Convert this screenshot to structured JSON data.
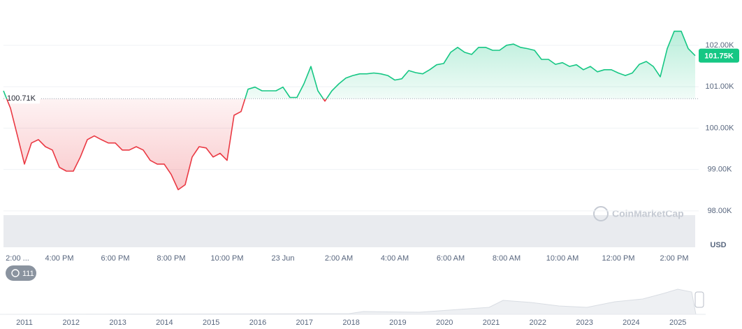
{
  "chart_data": {
    "type": "line",
    "x": [
      14,
      14.25,
      14.5,
      14.75,
      15,
      15.25,
      15.5,
      15.75,
      16,
      16.25,
      16.5,
      16.75,
      17,
      17.25,
      17.5,
      17.75,
      18,
      18.25,
      18.5,
      18.75,
      19,
      19.25,
      19.5,
      19.75,
      20,
      20.25,
      20.5,
      20.75,
      21,
      21.25,
      21.5,
      21.75,
      22,
      22.25,
      22.5,
      22.75,
      23,
      23.25,
      23.5,
      23.75,
      24,
      24.25,
      24.5,
      24.75,
      25,
      25.25,
      25.5,
      25.75,
      26,
      26.25,
      26.5,
      26.75,
      27,
      27.25,
      27.5,
      27.75,
      28,
      28.25,
      28.5,
      28.75,
      29,
      29.25,
      29.5,
      29.75,
      30,
      30.25,
      30.5,
      30.75,
      31,
      31.25,
      31.5,
      31.75,
      32,
      32.25,
      32.5,
      32.75,
      33,
      33.25,
      33.5,
      33.75,
      34,
      34.25,
      34.5,
      34.75,
      35,
      35.25,
      35.5,
      35.75,
      36,
      36.25,
      36.5,
      36.75,
      37,
      37.25,
      37.5,
      37.75,
      38,
      38.25,
      38.5,
      38.75
    ],
    "values": [
      100.9,
      100.48,
      99.81,
      99.13,
      99.64,
      99.72,
      99.55,
      99.47,
      99.05,
      98.96,
      98.96,
      99.3,
      99.72,
      99.81,
      99.72,
      99.64,
      99.64,
      99.47,
      99.47,
      99.55,
      99.47,
      99.22,
      99.13,
      99.13,
      98.88,
      98.51,
      98.63,
      99.3,
      99.55,
      99.52,
      99.3,
      99.39,
      99.22,
      100.31,
      100.4,
      100.94,
      100.99,
      100.9,
      100.9,
      100.9,
      100.99,
      100.74,
      100.74,
      101.07,
      101.49,
      100.9,
      100.65,
      100.9,
      101.07,
      101.21,
      101.27,
      101.31,
      101.31,
      101.33,
      101.31,
      101.27,
      101.16,
      101.19,
      101.39,
      101.34,
      101.31,
      101.41,
      101.53,
      101.56,
      101.83,
      101.95,
      101.83,
      101.78,
      101.95,
      101.95,
      101.88,
      101.88,
      102.0,
      102.03,
      101.95,
      101.92,
      101.88,
      101.66,
      101.66,
      101.54,
      101.58,
      101.49,
      101.53,
      101.41,
      101.49,
      101.36,
      101.41,
      101.41,
      101.33,
      101.27,
      101.33,
      101.54,
      101.61,
      101.49,
      101.24,
      101.92,
      102.34,
      102.34,
      101.92,
      101.75
    ],
    "color_up": "#16c784",
    "color_down": "#ea3943",
    "baseline": {
      "value": 100.71,
      "label": "100.71K"
    },
    "last_price": {
      "value": 101.75,
      "label": "101.75K"
    },
    "xlim": [
      14,
      38.75
    ],
    "xticks": [
      {
        "value": 14,
        "label": "2:00 ..."
      },
      {
        "value": 16,
        "label": "4:00 PM"
      },
      {
        "value": 18,
        "label": "6:00 PM"
      },
      {
        "value": 20,
        "label": "8:00 PM"
      },
      {
        "value": 22,
        "label": "10:00 PM"
      },
      {
        "value": 24,
        "label": "23 Jun"
      },
      {
        "value": 26,
        "label": "2:00 AM"
      },
      {
        "value": 28,
        "label": "4:00 AM"
      },
      {
        "value": 30,
        "label": "6:00 AM"
      },
      {
        "value": 32,
        "label": "8:00 AM"
      },
      {
        "value": 34,
        "label": "10:00 AM"
      },
      {
        "value": 36,
        "label": "12:00 PM"
      },
      {
        "value": 38,
        "label": "2:00 PM"
      }
    ],
    "ylim": [
      97.12,
      103.01
    ],
    "yticks": [
      {
        "value": 98,
        "label": "98.00K"
      },
      {
        "value": 99,
        "label": "99.00K"
      },
      {
        "value": 100,
        "label": "100.00K"
      },
      {
        "value": 101,
        "label": "101.00K"
      },
      {
        "value": 102,
        "label": "102.00K"
      }
    ],
    "grid": true,
    "currency": "USD",
    "watermark": "CoinMarketCap",
    "badge": "111",
    "navigator": {
      "categories": [
        "2011",
        "2012",
        "2013",
        "2014",
        "2015",
        "2016",
        "2017",
        "2018",
        "2019",
        "2020",
        "2021",
        "2022",
        "2023",
        "2024",
        "2025"
      ]
    }
  }
}
